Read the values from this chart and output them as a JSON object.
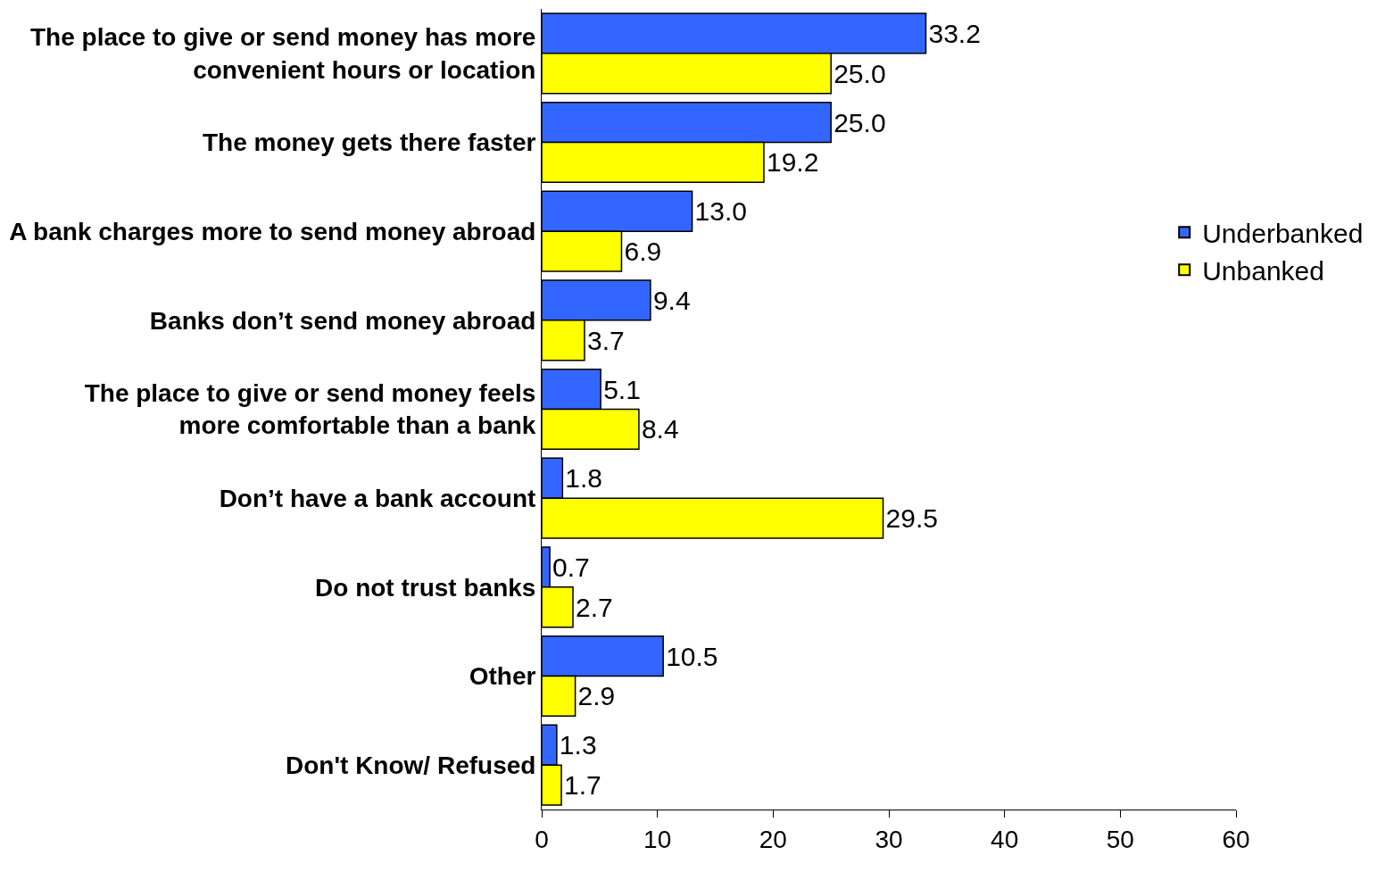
{
  "chart_data": {
    "type": "bar",
    "orientation": "horizontal",
    "categories": [
      "The place to give or send money has more convenient hours or location",
      "The money gets there faster",
      "A bank charges more to send money abroad",
      "Banks don’t send money abroad",
      "The place to give or send money feels more comfortable than a bank",
      "Don’t have a bank account",
      "Do not trust banks",
      "Other",
      "Don't Know/ Refused"
    ],
    "series": [
      {
        "name": "Underbanked",
        "color": "#3366ff",
        "values": [
          33.2,
          25.0,
          13.0,
          9.4,
          5.1,
          1.8,
          0.7,
          10.5,
          1.3
        ],
        "value_labels": [
          "33.2",
          "25.0",
          "13.0",
          "9.4",
          "5.1",
          "1.8",
          "0.7",
          "10.5",
          "1.3"
        ]
      },
      {
        "name": "Unbanked",
        "color": "#ffff00",
        "values": [
          25.0,
          19.2,
          6.9,
          3.7,
          8.4,
          29.5,
          2.7,
          2.9,
          1.7
        ],
        "value_labels": [
          "25.0",
          "19.2",
          "6.9",
          "3.7",
          "8.4",
          "29.5",
          "2.7",
          "2.9",
          "1.7"
        ]
      }
    ],
    "xlim": [
      0,
      60
    ],
    "xticks": [
      0,
      10,
      20,
      30,
      40,
      50,
      60
    ],
    "legend": "right"
  }
}
